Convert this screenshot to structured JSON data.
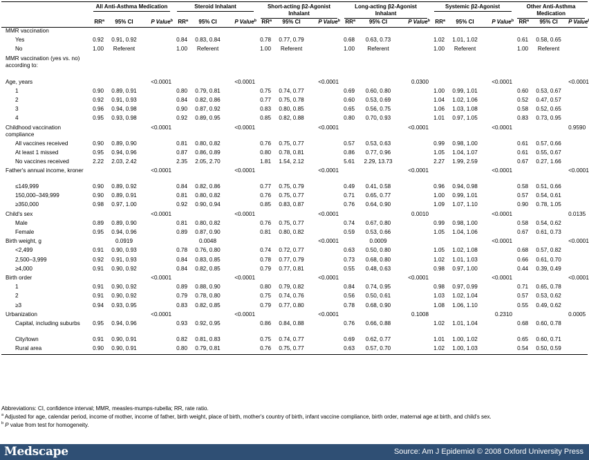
{
  "groups": [
    "All Anti-Asthma Medication",
    "Steroid Inhalant",
    "Short-acting β2-Agonist Inhalant",
    "Long-acting β2-Agonist Inhalant",
    "Systemic β2-Agonist",
    "Other Anti-Asthma Medication"
  ],
  "subheaders": {
    "rr": "RR",
    "rr_sup": "a",
    "ci": "95% CI",
    "pv": "P Value",
    "pv_sup": "b"
  },
  "rows": [
    {
      "label": "MMR vaccination",
      "ind": 1,
      "cells": [
        "",
        "",
        "",
        "",
        "",
        "",
        "",
        "",
        "",
        "",
        "",
        "",
        "",
        "",
        "",
        "",
        "",
        ""
      ]
    },
    {
      "label": "Yes",
      "ind": 2,
      "cells": [
        "0.92",
        "0.91, 0.92",
        "",
        "0.84",
        "0.83, 0.84",
        "",
        "0.78",
        "0.77, 0.79",
        "",
        "0.68",
        "0.63, 0.73",
        "",
        "1.02",
        "1.01, 1.02",
        "",
        "0.61",
        "0.58, 0.65",
        ""
      ]
    },
    {
      "label": "No",
      "ind": 2,
      "cells": [
        "1.00",
        "Referent",
        "",
        "1.00",
        "Referent",
        "",
        "1.00",
        "Referent",
        "",
        "1.00",
        "Referent",
        "",
        "1.00",
        "Referent",
        "",
        "1.00",
        "Referent",
        ""
      ]
    },
    {
      "label": "MMR vaccination (yes vs. no) according to:",
      "ind": 1,
      "h": "tall3",
      "cells": [
        "",
        "",
        "",
        "",
        "",
        "",
        "",
        "",
        "",
        "",
        "",
        "",
        "",
        "",
        "",
        "",
        "",
        ""
      ]
    },
    {
      "label": "Age, years",
      "ind": 1,
      "cells": [
        "",
        "",
        "<0.0001",
        "",
        "",
        "<0.0001",
        "",
        "",
        "<0.0001",
        "",
        "",
        "0.0300",
        "",
        "",
        "<0.0001",
        "",
        "",
        "<0.0001"
      ]
    },
    {
      "label": "1",
      "ind": 2,
      "cells": [
        "0.90",
        "0.89, 0.91",
        "",
        "0.80",
        "0.79, 0.81",
        "",
        "0.75",
        "0.74, 0.77",
        "",
        "0.69",
        "0.60, 0.80",
        "",
        "1.00",
        "0.99, 1.01",
        "",
        "0.60",
        "0.53, 0.67",
        ""
      ]
    },
    {
      "label": "2",
      "ind": 2,
      "cells": [
        "0.92",
        "0.91, 0.93",
        "",
        "0.84",
        "0.82, 0.86",
        "",
        "0.77",
        "0.75, 0.78",
        "",
        "0.60",
        "0.53, 0.69",
        "",
        "1.04",
        "1.02, 1.06",
        "",
        "0.52",
        "0.47, 0.57",
        ""
      ]
    },
    {
      "label": "3",
      "ind": 2,
      "cells": [
        "0.96",
        "0.94, 0.98",
        "",
        "0.90",
        "0.87, 0.92",
        "",
        "0.83",
        "0.80, 0.85",
        "",
        "0.65",
        "0.56, 0.75",
        "",
        "1.06",
        "1.03, 1.08",
        "",
        "0.58",
        "0.52, 0.65",
        ""
      ]
    },
    {
      "label": "4",
      "ind": 2,
      "cells": [
        "0.95",
        "0.93, 0.98",
        "",
        "0.92",
        "0.89, 0.95",
        "",
        "0.85",
        "0.82, 0.88",
        "",
        "0.80",
        "0.70, 0.93",
        "",
        "1.01",
        "0.97, 1.05",
        "",
        "0.83",
        "0.73, 0.95",
        ""
      ]
    },
    {
      "label": "Childhood vaccination compliance",
      "ind": 1,
      "h": "tall",
      "cells": [
        "",
        "",
        "<0.0001",
        "",
        "",
        "<0.0001",
        "",
        "",
        "<0.0001",
        "",
        "",
        "<0.0001",
        "",
        "",
        "<0.0001",
        "",
        "",
        "0.9590"
      ]
    },
    {
      "label": "All vaccines received",
      "ind": 2,
      "cells": [
        "0.90",
        "0.89, 0.90",
        "",
        "0.81",
        "0.80, 0.82",
        "",
        "0.76",
        "0.75, 0.77",
        "",
        "0.57",
        "0.53, 0.63",
        "",
        "0.99",
        "0.98, 1.00",
        "",
        "0.61",
        "0.57, 0.66",
        ""
      ]
    },
    {
      "label": "At least 1 missed",
      "ind": 2,
      "cells": [
        "0.95",
        "0.94, 0.96",
        "",
        "0.87",
        "0.86, 0.89",
        "",
        "0.80",
        "0.78, 0.81",
        "",
        "0.86",
        "0.77, 0.96",
        "",
        "1.05",
        "1.04, 1.07",
        "",
        "0.61",
        "0.55, 0.67",
        ""
      ]
    },
    {
      "label": "No vaccines received",
      "ind": 2,
      "cells": [
        "2.22",
        "2.03, 2.42",
        "",
        "2.35",
        "2.05, 2.70",
        "",
        "1.81",
        "1.54, 2.12",
        "",
        "5.61",
        "2.29, 13.73",
        "",
        "2.27",
        "1.99, 2.59",
        "",
        "0.67",
        "0.27, 1.66",
        ""
      ]
    },
    {
      "label": "Father's annual income, kroner",
      "ind": 1,
      "h": "tall",
      "cells": [
        "",
        "",
        "<0.0001",
        "",
        "",
        "<0.0001",
        "",
        "",
        "<0.0001",
        "",
        "",
        "<0.0001",
        "",
        "",
        "<0.0001",
        "",
        "",
        "<0.0001"
      ]
    },
    {
      "label": "≤149,999",
      "ind": 2,
      "cells": [
        "0.90",
        "0.89, 0.92",
        "",
        "0.84",
        "0.82, 0.86",
        "",
        "0.77",
        "0.75, 0.79",
        "",
        "0.49",
        "0.41, 0.58",
        "",
        "0.96",
        "0.94, 0.98",
        "",
        "0.58",
        "0.51, 0.66",
        ""
      ]
    },
    {
      "label": "150,000–349,999",
      "ind": 2,
      "cells": [
        "0.90",
        "0.89, 0.91",
        "",
        "0.81",
        "0.80, 0.82",
        "",
        "0.76",
        "0.75, 0.77",
        "",
        "0.71",
        "0.65, 0.77",
        "",
        "1.00",
        "0.99, 1.01",
        "",
        "0.57",
        "0.54, 0.61",
        ""
      ]
    },
    {
      "label": "≥350,000",
      "ind": 2,
      "cells": [
        "0.98",
        "0.97, 1.00",
        "",
        "0.92",
        "0.90, 0.94",
        "",
        "0.85",
        "0.83, 0.87",
        "",
        "0.76",
        "0.64, 0.90",
        "",
        "1.09",
        "1.07, 1.10",
        "",
        "0.90",
        "0.78, 1.05",
        ""
      ]
    },
    {
      "label": "Child's sex",
      "ind": 1,
      "cells": [
        "",
        "",
        "<0.0001",
        "",
        "",
        "<0.0001",
        "",
        "",
        "<0.0001",
        "",
        "",
        "0.0010",
        "",
        "",
        "<0.0001",
        "",
        "",
        "0.0135"
      ]
    },
    {
      "label": "Male",
      "ind": 2,
      "cells": [
        "0.89",
        "0.89, 0.90",
        "",
        "0.81",
        "0.80, 0.82",
        "",
        "0.76",
        "0.75, 0.77",
        "",
        "0.74",
        "0.67, 0.80",
        "",
        "0.99",
        "0.98, 1.00",
        "",
        "0.58",
        "0.54, 0.62",
        ""
      ]
    },
    {
      "label": "Female",
      "ind": 2,
      "cells": [
        "0.95",
        "0.94, 0.96",
        "",
        "0.89",
        "0.87, 0.90",
        "",
        "0.81",
        "0.80, 0.82",
        "",
        "0.59",
        "0.53, 0.66",
        "",
        "1.05",
        "1.04, 1.06",
        "",
        "0.67",
        "0.61, 0.73",
        ""
      ]
    },
    {
      "label": "Birth weight, g",
      "ind": 1,
      "cells": [
        "",
        "0.0919",
        "",
        "",
        "0.0048",
        "",
        "",
        "",
        "<0.0001",
        "",
        "0.0009",
        "",
        "",
        "",
        "<0.0001",
        "",
        "",
        "<0.0001"
      ]
    },
    {
      "label": "<2,499",
      "ind": 2,
      "cells": [
        "0.91",
        "0.90, 0.93",
        "",
        "0.78",
        "0.76, 0.80",
        "",
        "0.74",
        "0.72, 0.77",
        "",
        "0.63",
        "0.50, 0.80",
        "",
        "1.05",
        "1.02, 1.08",
        "",
        "0.68",
        "0.57, 0.82",
        ""
      ]
    },
    {
      "label": "2,500–3,999",
      "ind": 2,
      "cells": [
        "0.92",
        "0.91, 0.93",
        "",
        "0.84",
        "0.83, 0.85",
        "",
        "0.78",
        "0.77, 0.79",
        "",
        "0.73",
        "0.68, 0.80",
        "",
        "1.02",
        "1.01, 1.03",
        "",
        "0.66",
        "0.61, 0.70",
        ""
      ]
    },
    {
      "label": "≥4,000",
      "ind": 2,
      "cells": [
        "0.91",
        "0.90, 0.92",
        "",
        "0.84",
        "0.82, 0.85",
        "",
        "0.79",
        "0.77, 0.81",
        "",
        "0.55",
        "0.48, 0.63",
        "",
        "0.98",
        "0.97, 1.00",
        "",
        "0.44",
        "0.39, 0.49",
        ""
      ]
    },
    {
      "label": "Birth order",
      "ind": 1,
      "cells": [
        "",
        "",
        "<0.0001",
        "",
        "",
        "<0.0001",
        "",
        "",
        "<0.0001",
        "",
        "",
        "<0.0001",
        "",
        "",
        "<0.0001",
        "",
        "",
        "<0.0001"
      ]
    },
    {
      "label": "1",
      "ind": 2,
      "cells": [
        "0.91",
        "0.90, 0.92",
        "",
        "0.89",
        "0.88, 0.90",
        "",
        "0.80",
        "0.79, 0.82",
        "",
        "0.84",
        "0.74, 0.95",
        "",
        "0.98",
        "0.97, 0.99",
        "",
        "0.71",
        "0.65, 0.78",
        ""
      ]
    },
    {
      "label": "2",
      "ind": 2,
      "cells": [
        "0.91",
        "0.90, 0.92",
        "",
        "0.79",
        "0.78, 0.80",
        "",
        "0.75",
        "0.74, 0.76",
        "",
        "0.56",
        "0.50, 0.61",
        "",
        "1.03",
        "1.02, 1.04",
        "",
        "0.57",
        "0.53, 0.62",
        ""
      ]
    },
    {
      "label": "≥3",
      "ind": 2,
      "cells": [
        "0.94",
        "0.93, 0.95",
        "",
        "0.83",
        "0.82, 0.85",
        "",
        "0.79",
        "0.77, 0.80",
        "",
        "0.78",
        "0.68, 0.90",
        "",
        "1.08",
        "1.06, 1.10",
        "",
        "0.55",
        "0.49, 0.62",
        ""
      ]
    },
    {
      "label": "Urbanization",
      "ind": 1,
      "cells": [
        "",
        "",
        "<0.0001",
        "",
        "",
        "<0.0001",
        "",
        "",
        "<0.0001",
        "",
        "",
        "0.1008",
        "",
        "",
        "0.2310",
        "",
        "",
        "0.0005"
      ]
    },
    {
      "label": "Capital, including suburbs",
      "ind": 2,
      "h": "tall",
      "cells": [
        "0.95",
        "0.94, 0.96",
        "",
        "0.93",
        "0.92, 0.95",
        "",
        "0.86",
        "0.84, 0.88",
        "",
        "0.76",
        "0.66, 0.88",
        "",
        "1.02",
        "1.01, 1.04",
        "",
        "0.68",
        "0.60, 0.78",
        ""
      ]
    },
    {
      "label": "City/town",
      "ind": 2,
      "cells": [
        "0.91",
        "0.90, 0.91",
        "",
        "0.82",
        "0.81, 0.83",
        "",
        "0.75",
        "0.74, 0.77",
        "",
        "0.69",
        "0.62, 0.77",
        "",
        "1.01",
        "1.00, 1.02",
        "",
        "0.65",
        "0.60, 0.71",
        ""
      ]
    },
    {
      "label": "Rural area",
      "ind": 2,
      "h": "last",
      "cells": [
        "0.90",
        "0.90, 0.91",
        "",
        "0.80",
        "0.79, 0.81",
        "",
        "0.76",
        "0.75, 0.77",
        "",
        "0.63",
        "0.57, 0.70",
        "",
        "1.02",
        "1.00, 1.03",
        "",
        "0.54",
        "0.50, 0.59",
        ""
      ]
    }
  ],
  "footnotes": {
    "abbreviations": "Abbreviations: CI, confidence interval; MMR, measles-mumps-rubella; RR, rate ratio.",
    "a_mark": "a",
    "a_text": " Adjusted for age, calendar period, income of mother, income of father, birth weight, place of birth, mother's country of birth, infant vaccine compliance, birth order, maternal age at birth, and child's sex.",
    "b_mark": "b",
    "b_p": "P",
    "b_text": " value from test for homogeneity."
  },
  "footer": {
    "logo": "Medscape",
    "source": "Source: Am J Epidemiol © 2008 Oxford University Press",
    "bg_color": "#2f4f74"
  }
}
